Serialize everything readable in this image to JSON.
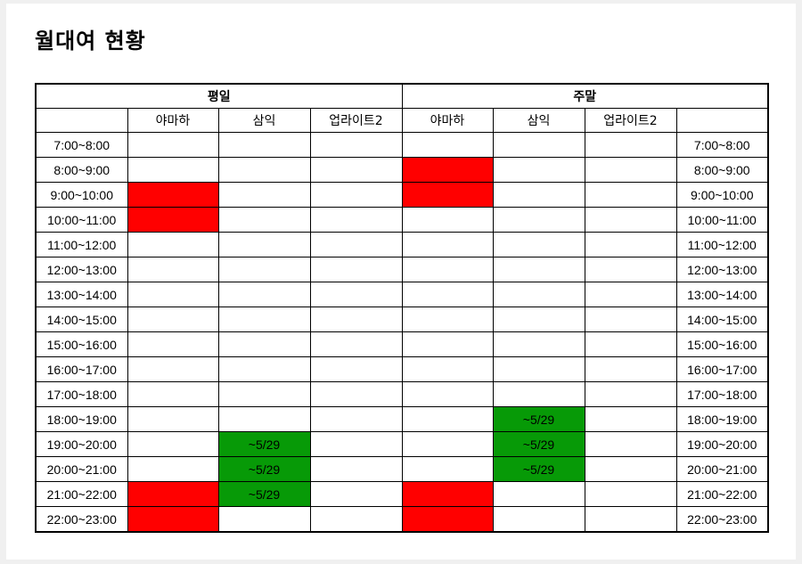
{
  "title": "월대여 현황",
  "groups": {
    "weekday": "평일",
    "weekend": "주말"
  },
  "columns": [
    "야마하",
    "삼익",
    "업라이트2"
  ],
  "colors": {
    "booked": "#ff0000",
    "until": "#079a07"
  },
  "rows": [
    {
      "time": "7:00~8:00",
      "weekday": [
        {
          "s": "empty",
          "t": ""
        },
        {
          "s": "empty",
          "t": ""
        },
        {
          "s": "empty",
          "t": ""
        }
      ],
      "weekend": [
        {
          "s": "empty",
          "t": ""
        },
        {
          "s": "empty",
          "t": ""
        },
        {
          "s": "empty",
          "t": ""
        }
      ]
    },
    {
      "time": "8:00~9:00",
      "weekday": [
        {
          "s": "faint",
          "t": ""
        },
        {
          "s": "empty",
          "t": ""
        },
        {
          "s": "empty",
          "t": ""
        }
      ],
      "weekend": [
        {
          "s": "booked",
          "t": ""
        },
        {
          "s": "empty",
          "t": ""
        },
        {
          "s": "empty",
          "t": ""
        }
      ]
    },
    {
      "time": "9:00~10:00",
      "weekday": [
        {
          "s": "booked",
          "t": ""
        },
        {
          "s": "empty",
          "t": ""
        },
        {
          "s": "empty",
          "t": ""
        }
      ],
      "weekend": [
        {
          "s": "booked",
          "t": ""
        },
        {
          "s": "empty",
          "t": ""
        },
        {
          "s": "empty",
          "t": ""
        }
      ]
    },
    {
      "time": "10:00~11:00",
      "weekday": [
        {
          "s": "booked",
          "t": ""
        },
        {
          "s": "empty",
          "t": ""
        },
        {
          "s": "empty",
          "t": ""
        }
      ],
      "weekend": [
        {
          "s": "empty",
          "t": ""
        },
        {
          "s": "empty",
          "t": ""
        },
        {
          "s": "empty",
          "t": ""
        }
      ]
    },
    {
      "time": "11:00~12:00",
      "weekday": [
        {
          "s": "empty",
          "t": ""
        },
        {
          "s": "empty",
          "t": ""
        },
        {
          "s": "empty",
          "t": ""
        }
      ],
      "weekend": [
        {
          "s": "empty",
          "t": ""
        },
        {
          "s": "empty",
          "t": ""
        },
        {
          "s": "empty",
          "t": ""
        }
      ]
    },
    {
      "time": "12:00~13:00",
      "weekday": [
        {
          "s": "empty",
          "t": ""
        },
        {
          "s": "empty",
          "t": ""
        },
        {
          "s": "empty",
          "t": ""
        }
      ],
      "weekend": [
        {
          "s": "empty",
          "t": ""
        },
        {
          "s": "empty",
          "t": ""
        },
        {
          "s": "empty",
          "t": ""
        }
      ]
    },
    {
      "time": "13:00~14:00",
      "weekday": [
        {
          "s": "empty",
          "t": ""
        },
        {
          "s": "empty",
          "t": ""
        },
        {
          "s": "empty",
          "t": ""
        }
      ],
      "weekend": [
        {
          "s": "empty",
          "t": ""
        },
        {
          "s": "empty",
          "t": ""
        },
        {
          "s": "empty",
          "t": ""
        }
      ]
    },
    {
      "time": "14:00~15:00",
      "weekday": [
        {
          "s": "empty",
          "t": ""
        },
        {
          "s": "empty",
          "t": ""
        },
        {
          "s": "empty",
          "t": ""
        }
      ],
      "weekend": [
        {
          "s": "empty",
          "t": ""
        },
        {
          "s": "empty",
          "t": ""
        },
        {
          "s": "empty",
          "t": ""
        }
      ]
    },
    {
      "time": "15:00~16:00",
      "weekday": [
        {
          "s": "empty",
          "t": ""
        },
        {
          "s": "empty",
          "t": ""
        },
        {
          "s": "empty",
          "t": ""
        }
      ],
      "weekend": [
        {
          "s": "empty",
          "t": ""
        },
        {
          "s": "empty",
          "t": ""
        },
        {
          "s": "empty",
          "t": ""
        }
      ]
    },
    {
      "time": "16:00~17:00",
      "weekday": [
        {
          "s": "empty",
          "t": ""
        },
        {
          "s": "empty",
          "t": ""
        },
        {
          "s": "empty",
          "t": ""
        }
      ],
      "weekend": [
        {
          "s": "empty",
          "t": ""
        },
        {
          "s": "empty",
          "t": ""
        },
        {
          "s": "empty",
          "t": ""
        }
      ]
    },
    {
      "time": "17:00~18:00",
      "weekday": [
        {
          "s": "empty",
          "t": ""
        },
        {
          "s": "empty",
          "t": ""
        },
        {
          "s": "empty",
          "t": ""
        }
      ],
      "weekend": [
        {
          "s": "empty",
          "t": ""
        },
        {
          "s": "empty",
          "t": ""
        },
        {
          "s": "empty",
          "t": ""
        }
      ]
    },
    {
      "time": "18:00~19:00",
      "weekday": [
        {
          "s": "empty",
          "t": ""
        },
        {
          "s": "empty",
          "t": ""
        },
        {
          "s": "empty",
          "t": ""
        }
      ],
      "weekend": [
        {
          "s": "empty",
          "t": ""
        },
        {
          "s": "until",
          "t": "~5/29"
        },
        {
          "s": "empty",
          "t": ""
        }
      ]
    },
    {
      "time": "19:00~20:00",
      "weekday": [
        {
          "s": "empty",
          "t": ""
        },
        {
          "s": "until",
          "t": "~5/29"
        },
        {
          "s": "empty",
          "t": ""
        }
      ],
      "weekend": [
        {
          "s": "empty",
          "t": ""
        },
        {
          "s": "until",
          "t": "~5/29"
        },
        {
          "s": "empty",
          "t": ""
        }
      ]
    },
    {
      "time": "20:00~21:00",
      "weekday": [
        {
          "s": "empty",
          "t": ""
        },
        {
          "s": "until",
          "t": "~5/29"
        },
        {
          "s": "empty",
          "t": ""
        }
      ],
      "weekend": [
        {
          "s": "empty",
          "t": ""
        },
        {
          "s": "until",
          "t": "~5/29"
        },
        {
          "s": "empty",
          "t": ""
        }
      ]
    },
    {
      "time": "21:00~22:00",
      "weekday": [
        {
          "s": "booked",
          "t": ""
        },
        {
          "s": "until",
          "t": "~5/29"
        },
        {
          "s": "empty",
          "t": ""
        }
      ],
      "weekend": [
        {
          "s": "booked",
          "t": ""
        },
        {
          "s": "empty",
          "t": ""
        },
        {
          "s": "empty",
          "t": ""
        }
      ]
    },
    {
      "time": "22:00~23:00",
      "weekday": [
        {
          "s": "booked",
          "t": ""
        },
        {
          "s": "empty",
          "t": ""
        },
        {
          "s": "empty",
          "t": ""
        }
      ],
      "weekend": [
        {
          "s": "booked",
          "t": ""
        },
        {
          "s": "empty",
          "t": ""
        },
        {
          "s": "empty",
          "t": ""
        }
      ]
    }
  ]
}
